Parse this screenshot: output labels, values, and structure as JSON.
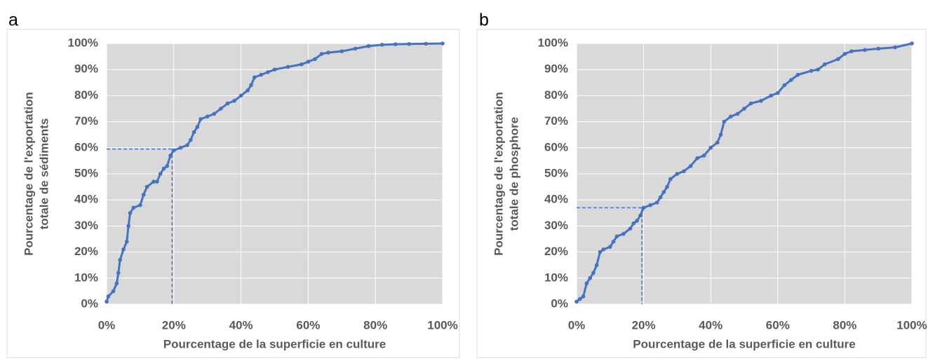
{
  "chart_data": [
    {
      "type": "line",
      "panel": "a",
      "xlabel": "Pourcentage de la superficie en culture",
      "ylabel": [
        "Pourcentage de l'exportation",
        "totale de sédiments"
      ],
      "color": "#4472c4",
      "background": "#d9d9d9",
      "grid": true,
      "x": [
        0,
        0.5,
        2,
        3,
        3.5,
        4,
        5,
        6,
        6.5,
        7,
        8,
        10,
        11,
        12,
        14,
        15,
        16,
        17,
        18,
        19,
        20,
        22,
        24,
        25,
        26,
        27,
        28,
        30,
        32,
        34,
        36,
        38,
        40,
        42,
        43,
        44,
        46,
        48,
        50,
        54,
        58,
        60,
        62,
        64,
        66,
        70,
        74,
        78,
        82,
        86,
        90,
        95,
        100
      ],
      "values": [
        1,
        3,
        5,
        8,
        12,
        17,
        21,
        24,
        30,
        35,
        37,
        38,
        42,
        45,
        47,
        47,
        50,
        52,
        53,
        57,
        59,
        60,
        61,
        63,
        66,
        68,
        71,
        72,
        73,
        75,
        77,
        78,
        80,
        82,
        84,
        87,
        88,
        89,
        90,
        91,
        92,
        93,
        94,
        96,
        96.5,
        97,
        98,
        99,
        99.5,
        99.7,
        99.8,
        99.9,
        100
      ],
      "reference": {
        "x": 19.5,
        "y": 59.5
      },
      "xlim": [
        0,
        100
      ],
      "ylim": [
        0,
        100
      ],
      "xticks": [
        {
          "value": 0,
          "label": "0%"
        },
        {
          "value": 20,
          "label": "20%"
        },
        {
          "value": 40,
          "label": "40%"
        },
        {
          "value": 60,
          "label": "60%"
        },
        {
          "value": 80,
          "label": "80%"
        },
        {
          "value": 100,
          "label": "100%"
        }
      ],
      "yticks": [
        {
          "value": 0,
          "label": "0%"
        },
        {
          "value": 10,
          "label": "10%"
        },
        {
          "value": 20,
          "label": "20%"
        },
        {
          "value": 30,
          "label": "30%"
        },
        {
          "value": 40,
          "label": "40%"
        },
        {
          "value": 50,
          "label": "50%"
        },
        {
          "value": 60,
          "label": "60%"
        },
        {
          "value": 70,
          "label": "70%"
        },
        {
          "value": 80,
          "label": "80%"
        },
        {
          "value": 90,
          "label": "90%"
        },
        {
          "value": 100,
          "label": "100%"
        }
      ]
    },
    {
      "type": "line",
      "panel": "b",
      "xlabel": "Pourcentage de la superficie en culture",
      "ylabel": [
        "Pourcentage de l'exportation",
        "totale de phosphore"
      ],
      "color": "#4472c4",
      "background": "#d9d9d9",
      "grid": true,
      "x": [
        0,
        1,
        2,
        3,
        4,
        5,
        6,
        7,
        8,
        10,
        11,
        12,
        14,
        16,
        17,
        18,
        19,
        20,
        22,
        24,
        25,
        26,
        27,
        28,
        30,
        32,
        34,
        36,
        38,
        40,
        42,
        43,
        44,
        46,
        48,
        50,
        52,
        55,
        58,
        60,
        62,
        64,
        66,
        70,
        72,
        74,
        78,
        80,
        82,
        86,
        90,
        95,
        100
      ],
      "values": [
        1,
        2,
        3,
        8,
        10,
        12,
        15,
        20,
        21,
        22,
        24,
        26,
        27,
        29,
        31,
        32,
        34,
        37,
        38,
        39,
        41,
        43,
        45,
        48,
        50,
        51,
        53,
        56,
        57,
        60,
        62,
        65,
        70,
        72,
        73,
        75,
        77,
        78,
        80,
        81,
        84,
        86,
        88,
        89.5,
        90,
        92,
        94,
        96,
        97,
        97.5,
        98,
        98.5,
        100
      ],
      "reference": {
        "x": 19.5,
        "y": 37
      },
      "xlim": [
        0,
        100
      ],
      "ylim": [
        0,
        100
      ],
      "xticks": [
        {
          "value": 0,
          "label": "0%"
        },
        {
          "value": 20,
          "label": "20%"
        },
        {
          "value": 40,
          "label": "40%"
        },
        {
          "value": 60,
          "label": "60%"
        },
        {
          "value": 80,
          "label": "80%"
        },
        {
          "value": 100,
          "label": "100%"
        }
      ],
      "yticks": [
        {
          "value": 0,
          "label": "0%"
        },
        {
          "value": 10,
          "label": "10%"
        },
        {
          "value": 20,
          "label": "20%"
        },
        {
          "value": 30,
          "label": "30%"
        },
        {
          "value": 40,
          "label": "40%"
        },
        {
          "value": 50,
          "label": "50%"
        },
        {
          "value": 60,
          "label": "60%"
        },
        {
          "value": 70,
          "label": "70%"
        },
        {
          "value": 80,
          "label": "80%"
        },
        {
          "value": 90,
          "label": "90%"
        },
        {
          "value": 100,
          "label": "100%"
        }
      ]
    }
  ]
}
